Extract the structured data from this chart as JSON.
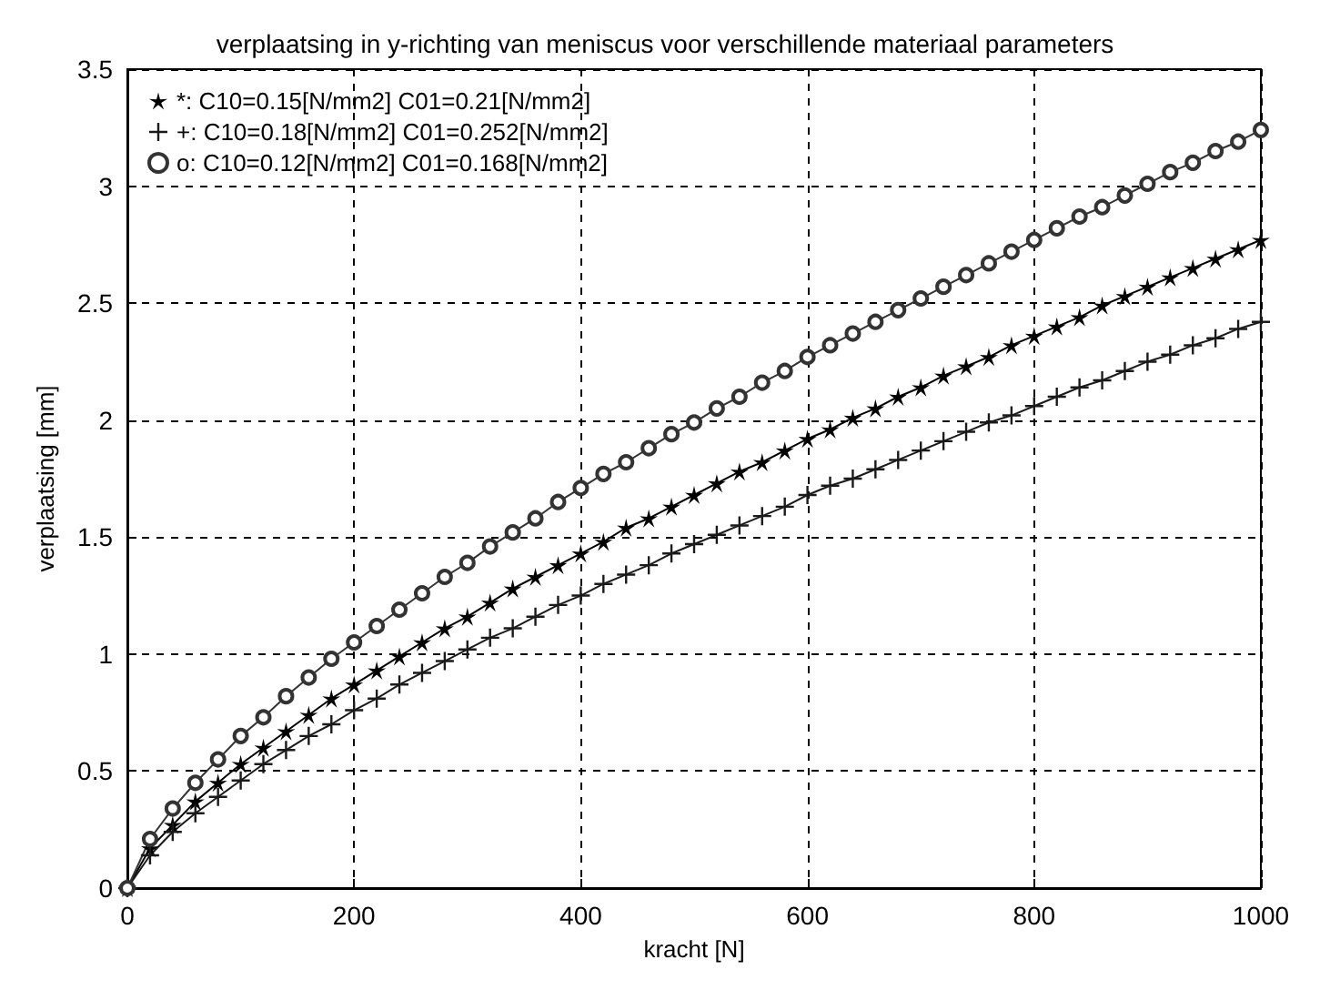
{
  "chart_data": {
    "type": "line",
    "title": "verplaatsing in y-richting van meniscus voor verschillende materiaal parameters",
    "xlabel": "kracht [N]",
    "ylabel": "verplaatsing [mm]",
    "x": [
      0,
      20,
      40,
      60,
      80,
      100,
      120,
      140,
      160,
      180,
      200,
      220,
      240,
      260,
      280,
      300,
      320,
      340,
      360,
      380,
      400,
      420,
      440,
      460,
      480,
      500,
      520,
      540,
      560,
      580,
      600,
      620,
      640,
      660,
      680,
      700,
      720,
      740,
      760,
      780,
      800,
      820,
      840,
      860,
      880,
      900,
      920,
      940,
      960,
      980,
      1000
    ],
    "series": [
      {
        "name": "*: C10=0.15[N/mm2] C01=0.21[N/mm2]",
        "color": "#000000",
        "marker": "star",
        "values": [
          0,
          0.17,
          0.27,
          0.37,
          0.45,
          0.53,
          0.6,
          0.67,
          0.74,
          0.81,
          0.87,
          0.93,
          0.99,
          1.05,
          1.11,
          1.16,
          1.22,
          1.28,
          1.33,
          1.38,
          1.43,
          1.48,
          1.54,
          1.58,
          1.63,
          1.68,
          1.73,
          1.78,
          1.82,
          1.87,
          1.92,
          1.96,
          2.01,
          2.05,
          2.1,
          2.14,
          2.19,
          2.23,
          2.27,
          2.32,
          2.36,
          2.4,
          2.44,
          2.49,
          2.53,
          2.57,
          2.61,
          2.65,
          2.69,
          2.73,
          2.77
        ]
      },
      {
        "name": "+: C10=0.18[N/mm2] C01=0.252[N/mm2]",
        "color": "#1a1a1a",
        "marker": "cross",
        "values": [
          0,
          0.14,
          0.24,
          0.32,
          0.39,
          0.46,
          0.53,
          0.59,
          0.65,
          0.7,
          0.76,
          0.81,
          0.87,
          0.92,
          0.97,
          1.02,
          1.07,
          1.11,
          1.16,
          1.21,
          1.25,
          1.3,
          1.34,
          1.38,
          1.43,
          1.47,
          1.51,
          1.55,
          1.59,
          1.63,
          1.68,
          1.72,
          1.75,
          1.79,
          1.83,
          1.87,
          1.91,
          1.95,
          1.99,
          2.02,
          2.06,
          2.1,
          2.14,
          2.17,
          2.21,
          2.25,
          2.28,
          2.32,
          2.35,
          2.39,
          2.42
        ]
      },
      {
        "name": "o: C10=0.12[N/mm2] C01=0.168[N/mm2]",
        "color": "#333333",
        "marker": "circle",
        "values": [
          0,
          0.21,
          0.34,
          0.45,
          0.55,
          0.65,
          0.73,
          0.82,
          0.9,
          0.98,
          1.05,
          1.12,
          1.19,
          1.26,
          1.33,
          1.39,
          1.46,
          1.52,
          1.58,
          1.65,
          1.71,
          1.77,
          1.82,
          1.88,
          1.94,
          1.99,
          2.05,
          2.1,
          2.16,
          2.21,
          2.27,
          2.32,
          2.37,
          2.42,
          2.47,
          2.52,
          2.57,
          2.62,
          2.67,
          2.72,
          2.77,
          2.82,
          2.87,
          2.91,
          2.96,
          3.01,
          3.06,
          3.1,
          3.15,
          3.19,
          3.24
        ]
      }
    ],
    "xlim": [
      0,
      1000
    ],
    "xticks": [
      0,
      200,
      400,
      600,
      800,
      1000
    ],
    "ylim": [
      0,
      3.5
    ],
    "yticks": [
      0,
      0.5,
      1,
      1.5,
      2,
      2.5,
      3,
      3.5
    ],
    "grid": true,
    "legend": "top left",
    "line_style": "solid"
  }
}
